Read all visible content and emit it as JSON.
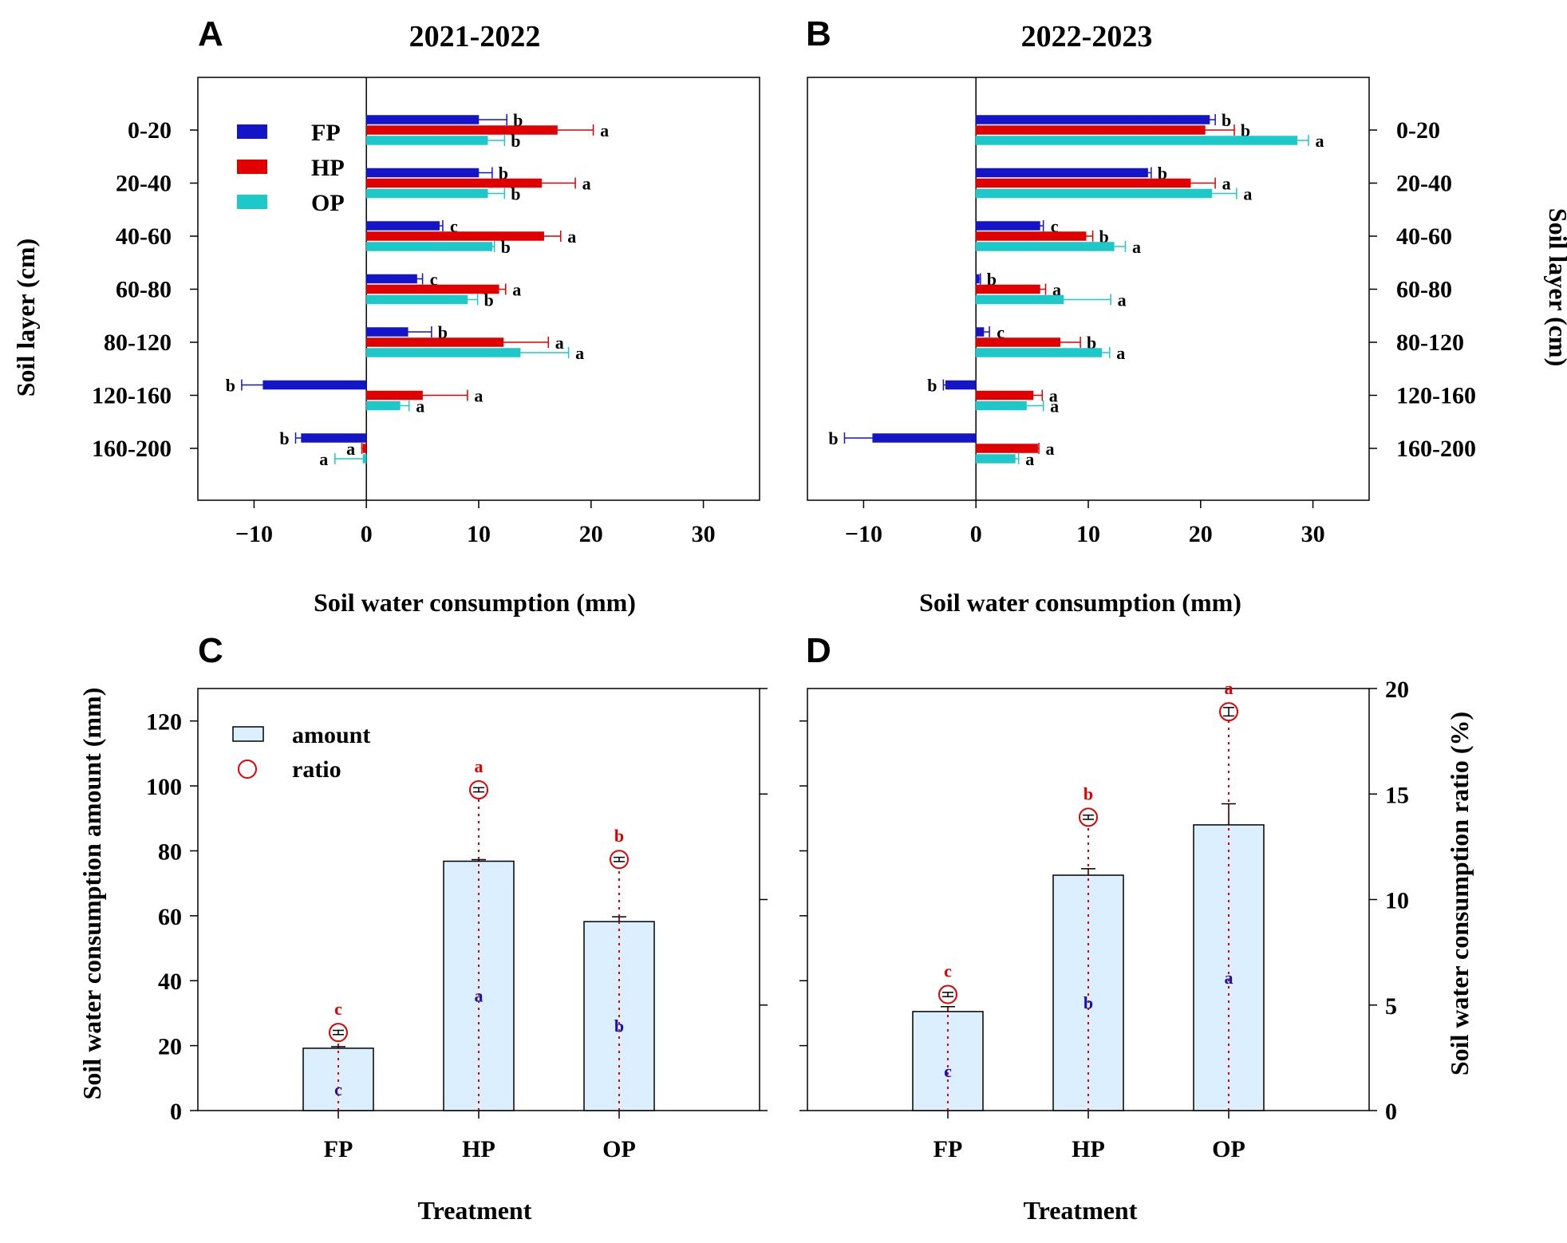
{
  "colors": {
    "FP": "#1414c8",
    "HP": "#e00000",
    "OP": "#1fc8c8",
    "bar_fill": "#dcefff",
    "ratio": "#e00000",
    "sig_blue": "#1414b4"
  },
  "panels": {
    "A": {
      "letter": "A",
      "title": "2021-2022",
      "xlabel": "Soil water consumption (mm)",
      "ylabel": "Soil layer (cm)"
    },
    "B": {
      "letter": "B",
      "title": "2022-2023",
      "xlabel": "Soil water consumption (mm)",
      "ylabel": "Soil layer (cm)"
    },
    "C": {
      "letter": "C",
      "xlabel": "Treatment",
      "ylabel": "Soil water consumption amount (mm)",
      "legend": {
        "amount": "amount",
        "ratio": "ratio"
      }
    },
    "D": {
      "letter": "D",
      "xlabel": "Treatment",
      "ylabel": "Soil water consumption ratio (%)"
    }
  },
  "chart_data": [
    {
      "id": "A",
      "type": "bar",
      "orientation": "horizontal",
      "title": "2021-2022",
      "xlabel": "Soil water consumption (mm)",
      "ylabel": "Soil layer (cm)",
      "xlim": [
        -15,
        35
      ],
      "xticks": [
        -10,
        0,
        10,
        20,
        30
      ],
      "xtick_labels": [
        "−10",
        "0",
        "10",
        "20",
        "30"
      ],
      "categories": [
        "0-20",
        "20-40",
        "40-60",
        "60-80",
        "80-120",
        "120-160",
        "160-200"
      ],
      "legend": [
        "FP",
        "HP",
        "OP"
      ],
      "series": [
        {
          "name": "FP",
          "values": [
            10.0,
            10.0,
            6.5,
            4.5,
            3.7,
            -9.2,
            -5.8
          ],
          "errors": [
            2.5,
            1.2,
            0.3,
            0.5,
            2.1,
            1.9,
            0.5
          ],
          "letters": [
            "b",
            "b",
            "c",
            "c",
            "b",
            "b",
            "b"
          ]
        },
        {
          "name": "HP",
          "values": [
            17.0,
            15.6,
            15.8,
            11.8,
            12.2,
            5.0,
            -0.3
          ],
          "errors": [
            3.2,
            3.0,
            1.5,
            0.6,
            4.0,
            4.0,
            0.1
          ],
          "letters": [
            "a",
            "a",
            "a",
            "a",
            "a",
            "a",
            "a"
          ]
        },
        {
          "name": "OP",
          "values": [
            10.8,
            10.8,
            11.2,
            9.0,
            13.7,
            3.0,
            -0.3
          ],
          "errors": [
            1.5,
            1.5,
            0.2,
            0.9,
            4.3,
            0.8,
            2.5
          ],
          "letters": [
            "b",
            "b",
            "b",
            "b",
            "a",
            "a",
            "a"
          ]
        }
      ]
    },
    {
      "id": "B",
      "type": "bar",
      "orientation": "horizontal",
      "title": "2022-2023",
      "xlabel": "Soil water consumption (mm)",
      "ylabel": "Soil layer (cm)",
      "xlim": [
        -15,
        35
      ],
      "xticks": [
        -10,
        0,
        10,
        20,
        30
      ],
      "xtick_labels": [
        "−10",
        "0",
        "10",
        "20",
        "30"
      ],
      "categories": [
        "0-20",
        "20-40",
        "40-60",
        "60-80",
        "80-120",
        "120-160",
        "160-200"
      ],
      "series": [
        {
          "name": "FP",
          "values": [
            20.8,
            15.3,
            5.7,
            0.3,
            0.7,
            -2.7,
            -9.2
          ],
          "errors": [
            0.5,
            0.3,
            0.3,
            0.1,
            0.5,
            0.2,
            2.5
          ],
          "letters": [
            "b",
            "b",
            "c",
            "b",
            "c",
            "b",
            "b"
          ]
        },
        {
          "name": "HP",
          "values": [
            20.4,
            19.1,
            9.8,
            5.7,
            7.5,
            5.1,
            5.5
          ],
          "errors": [
            2.6,
            2.2,
            0.6,
            0.5,
            1.8,
            0.8,
            0.1
          ],
          "letters": [
            "b",
            "a",
            "b",
            "a",
            "b",
            "a",
            "a"
          ]
        },
        {
          "name": "OP",
          "values": [
            28.6,
            21.0,
            12.3,
            7.8,
            11.2,
            4.5,
            3.5
          ],
          "errors": [
            1.0,
            2.2,
            1.0,
            4.2,
            0.7,
            1.5,
            0.3
          ],
          "letters": [
            "a",
            "a",
            "a",
            "a",
            "a",
            "a",
            "a"
          ]
        }
      ]
    },
    {
      "id": "C",
      "type": "bar",
      "title": "",
      "xlabel": "Treatment",
      "ylabel": "Soil water consumption amount (mm)",
      "ylim": [
        0,
        130
      ],
      "yticks": [
        0,
        20,
        40,
        60,
        80,
        100,
        120
      ],
      "y2lim": [
        0,
        20
      ],
      "categories": [
        "FP",
        "HP",
        "OP"
      ],
      "legend": [
        "amount",
        "ratio"
      ],
      "series": [
        {
          "name": "amount",
          "values": [
            19.2,
            76.8,
            58.2
          ],
          "errors": [
            0.5,
            0.5,
            1.5
          ],
          "letters": [
            "c",
            "a",
            "b"
          ]
        },
        {
          "name": "ratio",
          "axis": "right",
          "values": [
            3.7,
            15.2,
            11.9
          ],
          "errors": [
            0.1,
            0.1,
            0.1
          ],
          "letters": [
            "c",
            "a",
            "b"
          ]
        }
      ]
    },
    {
      "id": "D",
      "type": "bar",
      "title": "",
      "xlabel": "Treatment",
      "ylabel": "Soil water consumption ratio (%)",
      "ylim": [
        0,
        130
      ],
      "y2lim": [
        0,
        20
      ],
      "y2ticks": [
        0,
        5,
        10,
        15,
        20
      ],
      "categories": [
        "FP",
        "HP",
        "OP"
      ],
      "series": [
        {
          "name": "amount",
          "values": [
            30.5,
            72.5,
            88.0
          ],
          "errors": [
            1.5,
            2.0,
            6.5
          ],
          "letters": [
            "c",
            "b",
            "a"
          ]
        },
        {
          "name": "ratio",
          "axis": "right",
          "values": [
            5.5,
            13.9,
            18.9
          ],
          "errors": [
            0.1,
            0.1,
            0.2
          ],
          "letters": [
            "c",
            "b",
            "a"
          ]
        }
      ]
    }
  ]
}
